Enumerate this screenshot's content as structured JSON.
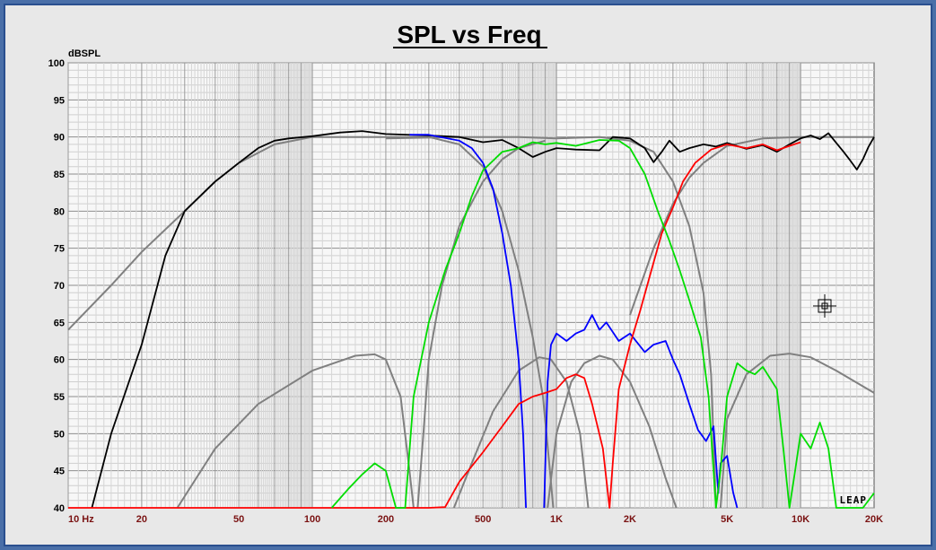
{
  "chart_data": {
    "type": "line",
    "title": "SPL vs Freq",
    "ylabel": "dBSPL",
    "xlabel": "",
    "x_scale": "log",
    "xlim": [
      10,
      20000
    ],
    "ylim": [
      40,
      100
    ],
    "y_ticks": [
      40,
      45,
      50,
      55,
      60,
      65,
      70,
      75,
      80,
      85,
      90,
      95,
      100
    ],
    "x_ticks": [
      {
        "v": 10,
        "label": "10 Hz"
      },
      {
        "v": 20,
        "label": "20"
      },
      {
        "v": 50,
        "label": "50"
      },
      {
        "v": 100,
        "label": "100"
      },
      {
        "v": 200,
        "label": "200"
      },
      {
        "v": 500,
        "label": "500"
      },
      {
        "v": 1000,
        "label": "1K"
      },
      {
        "v": 2000,
        "label": "2K"
      },
      {
        "v": 5000,
        "label": "5K"
      },
      {
        "v": 10000,
        "label": "10K"
      },
      {
        "v": 20000,
        "label": "20K"
      }
    ],
    "grid": true,
    "watermark": "LEAP",
    "series": [
      {
        "color": "#808080",
        "points": [
          [
            10,
            64
          ],
          [
            15,
            70
          ],
          [
            20,
            74.5
          ],
          [
            30,
            80
          ],
          [
            40,
            84
          ],
          [
            50,
            86.5
          ],
          [
            70,
            89
          ],
          [
            100,
            90
          ],
          [
            200,
            90
          ],
          [
            300,
            90
          ],
          [
            400,
            89
          ],
          [
            500,
            86
          ],
          [
            600,
            80
          ],
          [
            700,
            72
          ],
          [
            800,
            63
          ],
          [
            880,
            55
          ],
          [
            940,
            45
          ],
          [
            970,
            40
          ]
        ]
      },
      {
        "color": "#808080",
        "points": [
          [
            200,
            89.8
          ],
          [
            400,
            90
          ],
          [
            700,
            90
          ],
          [
            1000,
            89.8
          ],
          [
            1500,
            90
          ],
          [
            2000,
            89.5
          ],
          [
            2500,
            88
          ],
          [
            3000,
            84
          ],
          [
            3500,
            78
          ],
          [
            4000,
            69
          ],
          [
            4300,
            58
          ],
          [
            4500,
            40
          ]
        ]
      },
      {
        "color": "#808080",
        "points": [
          [
            2000,
            66
          ],
          [
            2500,
            75
          ],
          [
            3000,
            81
          ],
          [
            3500,
            84.5
          ],
          [
            4000,
            86.5
          ],
          [
            5000,
            88.8
          ],
          [
            7000,
            89.8
          ],
          [
            10000,
            90
          ],
          [
            20000,
            90
          ]
        ]
      },
      {
        "color": "#808080",
        "points": [
          [
            270,
            40
          ],
          [
            285,
            50
          ],
          [
            300,
            60
          ],
          [
            340,
            70
          ],
          [
            400,
            78
          ],
          [
            500,
            84
          ],
          [
            600,
            87
          ],
          [
            700,
            88.5
          ],
          [
            900,
            89.5
          ]
        ]
      },
      {
        "color": "#808080",
        "points": [
          [
            28,
            40
          ],
          [
            40,
            48
          ],
          [
            60,
            54
          ],
          [
            100,
            58.5
          ],
          [
            150,
            60.5
          ],
          [
            180,
            60.7
          ],
          [
            200,
            60
          ],
          [
            230,
            55
          ],
          [
            250,
            45
          ],
          [
            260,
            40
          ]
        ]
      },
      {
        "color": "#808080",
        "points": [
          [
            380,
            40
          ],
          [
            450,
            46
          ],
          [
            550,
            53
          ],
          [
            700,
            58.5
          ],
          [
            850,
            60.3
          ],
          [
            950,
            60
          ],
          [
            1100,
            57
          ],
          [
            1250,
            50
          ],
          [
            1350,
            40
          ]
        ]
      },
      {
        "color": "#808080",
        "points": [
          [
            920,
            40
          ],
          [
            1000,
            50
          ],
          [
            1150,
            57
          ],
          [
            1300,
            59.5
          ],
          [
            1500,
            60.5
          ],
          [
            1700,
            60
          ],
          [
            2000,
            57
          ],
          [
            2400,
            51
          ],
          [
            2800,
            44
          ],
          [
            3100,
            40
          ]
        ]
      },
      {
        "color": "#808080",
        "points": [
          [
            4700,
            40
          ],
          [
            5000,
            52
          ],
          [
            6000,
            58
          ],
          [
            7500,
            60.5
          ],
          [
            9000,
            60.8
          ],
          [
            11000,
            60.3
          ],
          [
            14000,
            58.5
          ],
          [
            20000,
            55.5
          ]
        ]
      },
      {
        "color": "#000000",
        "points": [
          [
            12.5,
            40
          ],
          [
            15,
            50
          ],
          [
            20,
            62
          ],
          [
            25,
            74
          ],
          [
            30,
            80
          ],
          [
            40,
            84
          ],
          [
            50,
            86.5
          ],
          [
            60,
            88.5
          ],
          [
            70,
            89.5
          ],
          [
            80,
            89.8
          ],
          [
            100,
            90.1
          ],
          [
            130,
            90.6
          ],
          [
            160,
            90.8
          ],
          [
            200,
            90.4
          ],
          [
            300,
            90.2
          ],
          [
            400,
            90
          ],
          [
            500,
            89.3
          ],
          [
            600,
            89.6
          ],
          [
            700,
            88.5
          ],
          [
            800,
            87.3
          ],
          [
            900,
            88
          ],
          [
            1000,
            88.5
          ],
          [
            1200,
            88.3
          ],
          [
            1500,
            88.2
          ],
          [
            1700,
            90
          ],
          [
            2000,
            89.8
          ],
          [
            2300,
            88.5
          ],
          [
            2500,
            86.6
          ],
          [
            2700,
            88
          ],
          [
            2900,
            89.5
          ],
          [
            3200,
            88
          ],
          [
            3500,
            88.5
          ],
          [
            4000,
            89
          ],
          [
            4500,
            88.7
          ],
          [
            5000,
            89.2
          ],
          [
            6000,
            88.4
          ],
          [
            7000,
            88.9
          ],
          [
            8000,
            88
          ],
          [
            9000,
            89
          ],
          [
            10000,
            89.8
          ],
          [
            11000,
            90.2
          ],
          [
            12000,
            89.7
          ],
          [
            13000,
            90.5
          ],
          [
            14000,
            89.2
          ],
          [
            15000,
            88
          ],
          [
            16000,
            86.8
          ],
          [
            17000,
            85.6
          ],
          [
            18000,
            87
          ],
          [
            19000,
            88.7
          ],
          [
            20000,
            90
          ]
        ]
      },
      {
        "color": "#0000ff",
        "points": [
          [
            250,
            90.3
          ],
          [
            300,
            90.3
          ],
          [
            400,
            89.5
          ],
          [
            450,
            88.5
          ],
          [
            500,
            86.5
          ],
          [
            550,
            83
          ],
          [
            600,
            77
          ],
          [
            650,
            70
          ],
          [
            700,
            60
          ],
          [
            730,
            50
          ],
          [
            750,
            40
          ]
        ]
      },
      {
        "color": "#0000ff",
        "points": [
          [
            890,
            40
          ],
          [
            920,
            57
          ],
          [
            950,
            62
          ],
          [
            1000,
            63.5
          ],
          [
            1100,
            62.5
          ],
          [
            1200,
            63.5
          ],
          [
            1300,
            64
          ],
          [
            1400,
            66
          ],
          [
            1500,
            64
          ],
          [
            1600,
            65
          ],
          [
            1800,
            62.5
          ],
          [
            2000,
            63.5
          ],
          [
            2300,
            61
          ],
          [
            2500,
            62
          ],
          [
            2800,
            62.5
          ],
          [
            3000,
            60
          ],
          [
            3200,
            58
          ],
          [
            3500,
            54
          ],
          [
            3800,
            50.5
          ],
          [
            4100,
            49
          ],
          [
            4400,
            51
          ],
          [
            4600,
            42
          ],
          [
            4700,
            46
          ],
          [
            5000,
            47
          ],
          [
            5300,
            42
          ],
          [
            5500,
            40
          ]
        ]
      },
      {
        "color": "#ff0000",
        "points": [
          [
            10,
            40
          ],
          [
            300,
            40
          ],
          [
            350,
            40.1
          ],
          [
            400,
            43.5
          ],
          [
            500,
            47.5
          ],
          [
            600,
            51
          ],
          [
            700,
            54
          ],
          [
            800,
            55
          ],
          [
            900,
            55.5
          ],
          [
            1000,
            56
          ],
          [
            1100,
            57.5
          ],
          [
            1200,
            58
          ],
          [
            1300,
            57.5
          ],
          [
            1400,
            54
          ],
          [
            1550,
            48
          ],
          [
            1650,
            40
          ],
          [
            1700,
            46
          ],
          [
            1800,
            56
          ],
          [
            2000,
            62
          ],
          [
            2200,
            66.5
          ],
          [
            2400,
            71
          ],
          [
            2700,
            77
          ],
          [
            3000,
            80.5
          ],
          [
            3300,
            84
          ],
          [
            3700,
            86.5
          ],
          [
            4300,
            88.3
          ],
          [
            5000,
            89
          ],
          [
            6000,
            88.5
          ],
          [
            7000,
            89
          ],
          [
            8000,
            88.2
          ],
          [
            9000,
            88.8
          ],
          [
            10000,
            89.3
          ]
        ]
      },
      {
        "color": "#00dd00",
        "points": [
          [
            120,
            40
          ],
          [
            140,
            42.5
          ],
          [
            160,
            44.5
          ],
          [
            180,
            46
          ],
          [
            200,
            45
          ],
          [
            220,
            40
          ],
          [
            240,
            40
          ],
          [
            260,
            55
          ],
          [
            300,
            65
          ],
          [
            350,
            72
          ],
          [
            400,
            77
          ],
          [
            450,
            82
          ],
          [
            500,
            85.5
          ],
          [
            600,
            88
          ],
          [
            700,
            88.5
          ],
          [
            800,
            89.3
          ],
          [
            900,
            89
          ],
          [
            1000,
            89.2
          ],
          [
            1200,
            88.8
          ],
          [
            1500,
            89.6
          ],
          [
            1800,
            89.5
          ],
          [
            2000,
            88.5
          ],
          [
            2300,
            85
          ],
          [
            2600,
            80
          ],
          [
            2900,
            76
          ],
          [
            3200,
            72
          ],
          [
            3500,
            68
          ],
          [
            3900,
            63
          ],
          [
            4200,
            55
          ],
          [
            4400,
            45
          ],
          [
            4500,
            40
          ],
          [
            4700,
            45
          ],
          [
            5000,
            55
          ],
          [
            5500,
            59.5
          ],
          [
            6000,
            58.5
          ],
          [
            6500,
            58
          ],
          [
            7000,
            59
          ],
          [
            8000,
            56
          ],
          [
            8500,
            48
          ],
          [
            9000,
            40
          ],
          [
            9500,
            45
          ],
          [
            10000,
            50
          ],
          [
            11000,
            48
          ],
          [
            12000,
            51.5
          ],
          [
            13000,
            48
          ],
          [
            14000,
            40
          ],
          [
            18000,
            40
          ],
          [
            20000,
            42
          ]
        ]
      }
    ]
  }
}
